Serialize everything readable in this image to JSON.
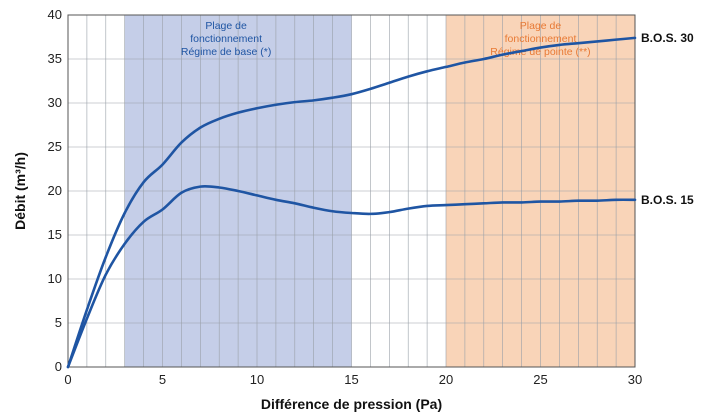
{
  "chart_data": {
    "type": "line",
    "xlabel": "Différence de pression (Pa)",
    "ylabel": "Débit (m³/h)",
    "xlim": [
      0,
      30
    ],
    "ylim": [
      0,
      40
    ],
    "xticks": [
      0,
      5,
      10,
      15,
      20,
      25,
      30
    ],
    "yticks": [
      0,
      5,
      10,
      15,
      20,
      25,
      30,
      35,
      40
    ],
    "grid": "vertical lines every 1 Pa, horizontal lines every 5 m³/h",
    "colors": {
      "line": "#1f55a3",
      "zone_base_fill": "#c5cee8",
      "zone_base_text": "#1f55a3",
      "zone_peak_fill": "#f9d4b8",
      "zone_peak_text": "#e87a35",
      "grid": "#9aa0a8"
    },
    "zones": [
      {
        "x_start": 3,
        "x_end": 15,
        "text_line1": "Plage de",
        "text_line2": "fonctionnement",
        "text_line3": "Régime de base (*)"
      },
      {
        "x_start": 20,
        "x_end": 30,
        "text_line1": "Plage de",
        "text_line2": "fonctionnement",
        "text_line3": "Régime de pointe (**)"
      }
    ],
    "series": [
      {
        "name": "B.O.S. 30",
        "points": [
          [
            0,
            0
          ],
          [
            1,
            6.5
          ],
          [
            2,
            12.5
          ],
          [
            3,
            17.5
          ],
          [
            4,
            21
          ],
          [
            5,
            23
          ],
          [
            6,
            25.5
          ],
          [
            7,
            27.2
          ],
          [
            8,
            28.2
          ],
          [
            9,
            28.9
          ],
          [
            10,
            29.4
          ],
          [
            11,
            29.8
          ],
          [
            12,
            30.1
          ],
          [
            13,
            30.3
          ],
          [
            14,
            30.6
          ],
          [
            15,
            31
          ],
          [
            16,
            31.6
          ],
          [
            17,
            32.3
          ],
          [
            18,
            33
          ],
          [
            19,
            33.6
          ],
          [
            20,
            34.1
          ],
          [
            21,
            34.6
          ],
          [
            22,
            35
          ],
          [
            23,
            35.5
          ],
          [
            24,
            35.9
          ],
          [
            25,
            36.3
          ],
          [
            26,
            36.6
          ],
          [
            27,
            36.8
          ],
          [
            28,
            37
          ],
          [
            29,
            37.2
          ],
          [
            30,
            37.4
          ]
        ]
      },
      {
        "name": "B.O.S. 15",
        "points": [
          [
            0,
            0
          ],
          [
            1,
            5.5
          ],
          [
            2,
            10.5
          ],
          [
            3,
            14
          ],
          [
            4,
            16.5
          ],
          [
            5,
            17.9
          ],
          [
            6,
            19.8
          ],
          [
            7,
            20.5
          ],
          [
            8,
            20.4
          ],
          [
            9,
            20
          ],
          [
            10,
            19.5
          ],
          [
            11,
            19
          ],
          [
            12,
            18.6
          ],
          [
            13,
            18.1
          ],
          [
            14,
            17.7
          ],
          [
            15,
            17.5
          ],
          [
            16,
            17.4
          ],
          [
            17,
            17.6
          ],
          [
            18,
            18
          ],
          [
            19,
            18.3
          ],
          [
            20,
            18.4
          ],
          [
            21,
            18.5
          ],
          [
            22,
            18.6
          ],
          [
            23,
            18.7
          ],
          [
            24,
            18.7
          ],
          [
            25,
            18.8
          ],
          [
            26,
            18.8
          ],
          [
            27,
            18.9
          ],
          [
            28,
            18.9
          ],
          [
            29,
            19
          ],
          [
            30,
            19
          ]
        ]
      }
    ]
  }
}
